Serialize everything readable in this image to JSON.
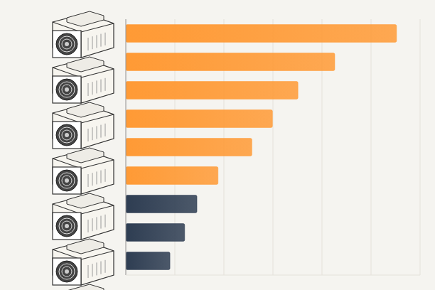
{
  "chart_data": {
    "type": "bar",
    "orientation": "horizontal",
    "categories": [
      null,
      null,
      null,
      null,
      null,
      null,
      null,
      null,
      null
    ],
    "values": [
      5.52,
      4.26,
      3.51,
      2.99,
      2.57,
      1.88,
      1.45,
      1.2,
      0.9
    ],
    "colors": [
      "#ff9a35",
      "#ff9a35",
      "#ff9a35",
      "#ff9a35",
      "#ff9a35",
      "#ff9a35",
      "#2e3d52",
      "#2e3d52",
      "#2e3d52"
    ],
    "xlim": [
      0,
      6
    ],
    "xticks": [
      0,
      1,
      2,
      3,
      4,
      5,
      6
    ],
    "grid": true,
    "tick_labels": false
  }
}
